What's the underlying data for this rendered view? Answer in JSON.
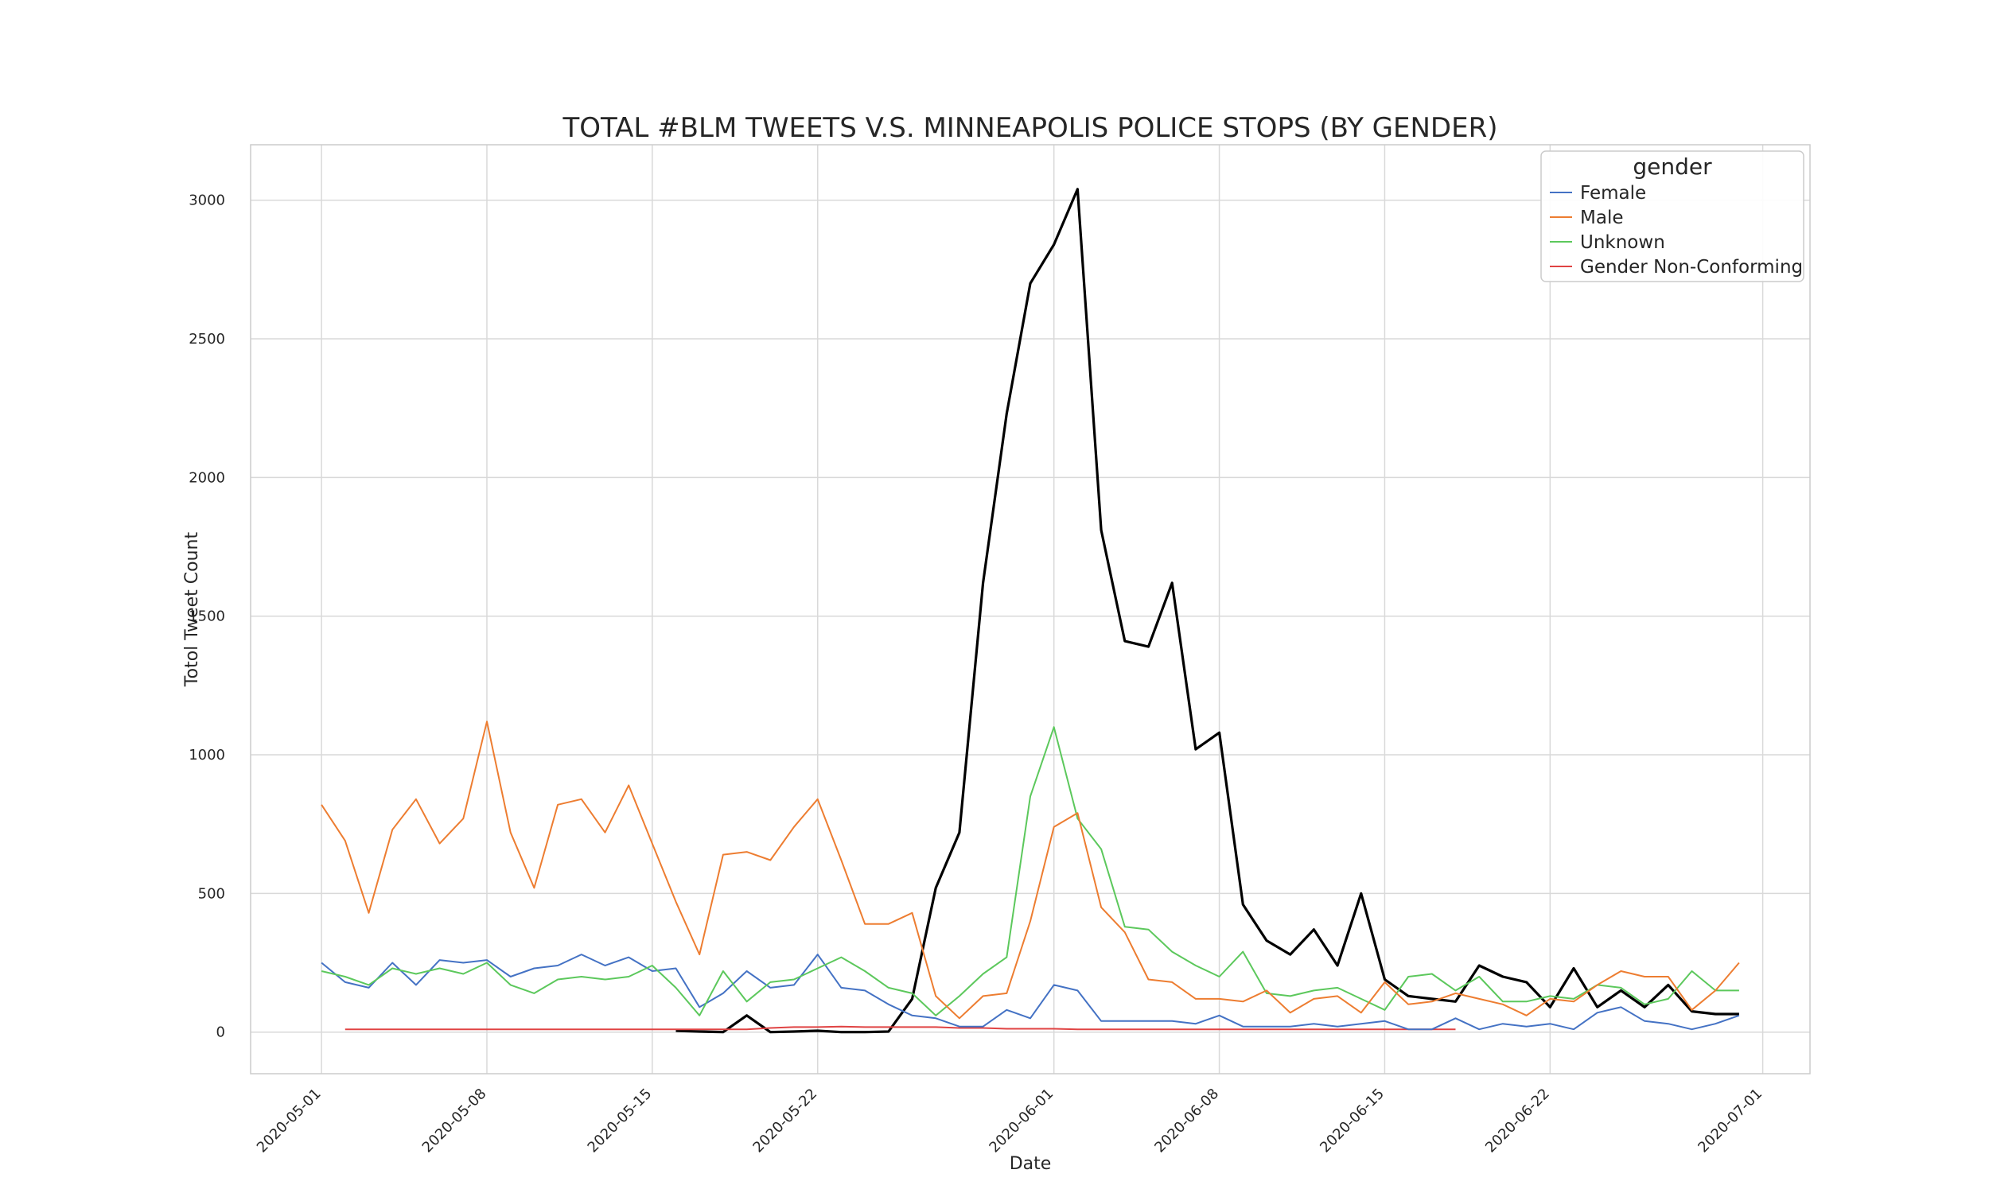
{
  "chart_data": {
    "type": "line",
    "title": "TOTAL #BLM TWEETS V.S. MINNEAPOLIS POLICE STOPS (BY GENDER)",
    "xlabel": "Date",
    "ylabel": "Totol Tweet Count",
    "x_range": [
      "2020-04-28",
      "2020-07-03"
    ],
    "ylim": [
      -150,
      3200
    ],
    "x_ticks": [
      "2020-05-01",
      "2020-05-08",
      "2020-05-15",
      "2020-05-22",
      "2020-06-01",
      "2020-06-08",
      "2020-06-15",
      "2020-06-22",
      "2020-07-01"
    ],
    "y_ticks": [
      0,
      500,
      1000,
      1500,
      2000,
      2500,
      3000
    ],
    "grid": true,
    "legend": {
      "title": "gender",
      "placement": "top-right"
    },
    "series": [
      {
        "name": "Female",
        "color": "#4472c4",
        "start_date": "2020-05-01",
        "values": [
          250,
          180,
          160,
          250,
          170,
          260,
          250,
          260,
          200,
          230,
          240,
          280,
          240,
          270,
          220,
          230,
          90,
          140,
          220,
          160,
          170,
          280,
          160,
          150,
          100,
          60,
          50,
          20,
          20,
          80,
          50,
          170,
          150,
          40,
          40,
          40,
          40,
          30,
          60,
          20,
          20,
          20,
          30,
          20,
          30,
          40,
          10,
          10,
          50,
          10,
          30,
          20,
          30,
          10,
          70,
          90,
          40,
          30,
          10,
          30,
          60
        ]
      },
      {
        "name": "Male",
        "color": "#ed7d31",
        "start_date": "2020-05-01",
        "values": [
          820,
          690,
          430,
          730,
          840,
          680,
          770,
          1120,
          720,
          520,
          820,
          840,
          720,
          890,
          680,
          470,
          280,
          640,
          650,
          620,
          740,
          840,
          620,
          390,
          390,
          430,
          130,
          50,
          130,
          140,
          400,
          740,
          790,
          450,
          360,
          190,
          180,
          120,
          120,
          110,
          150,
          70,
          120,
          130,
          70,
          180,
          100,
          110,
          140,
          120,
          100,
          60,
          120,
          110,
          170,
          220,
          200,
          200,
          80,
          150,
          250
        ]
      },
      {
        "name": "Unknown",
        "color": "#5cc85c",
        "start_date": "2020-05-01",
        "values": [
          220,
          200,
          170,
          230,
          210,
          230,
          210,
          250,
          170,
          140,
          190,
          200,
          190,
          200,
          240,
          160,
          60,
          220,
          110,
          180,
          190,
          230,
          270,
          220,
          160,
          140,
          60,
          130,
          210,
          270,
          850,
          1100,
          770,
          660,
          380,
          370,
          290,
          240,
          200,
          290,
          140,
          130,
          150,
          160,
          120,
          80,
          200,
          210,
          150,
          200,
          110,
          110,
          130,
          120,
          170,
          160,
          100,
          120,
          220,
          150,
          150
        ]
      },
      {
        "name": "Gender Non-Conforming",
        "color": "#e04343",
        "start_date": "2020-05-02",
        "values": [
          10,
          10,
          10,
          10,
          10,
          10,
          10,
          10,
          10,
          10,
          10,
          10,
          10,
          10,
          10,
          10,
          10,
          10,
          15,
          18,
          18,
          20,
          18,
          18,
          18,
          18,
          15,
          15,
          12,
          12,
          12,
          10,
          10,
          10,
          10,
          10,
          10,
          10,
          10,
          10,
          10,
          10,
          10,
          10,
          10,
          10,
          10,
          10
        ]
      },
      {
        "name": "",
        "color": "#000000",
        "start_date": "2020-05-16",
        "values": [
          5,
          2,
          0,
          60,
          0,
          2,
          5,
          0,
          0,
          2,
          120,
          520,
          720,
          1620,
          2230,
          2700,
          2840,
          3040,
          1810,
          1410,
          1390,
          1620,
          1020,
          1080,
          460,
          330,
          280,
          370,
          240,
          500,
          190,
          130,
          120,
          110,
          240,
          200,
          180,
          90,
          230,
          90,
          150,
          90,
          170,
          75,
          65,
          65
        ]
      }
    ]
  }
}
